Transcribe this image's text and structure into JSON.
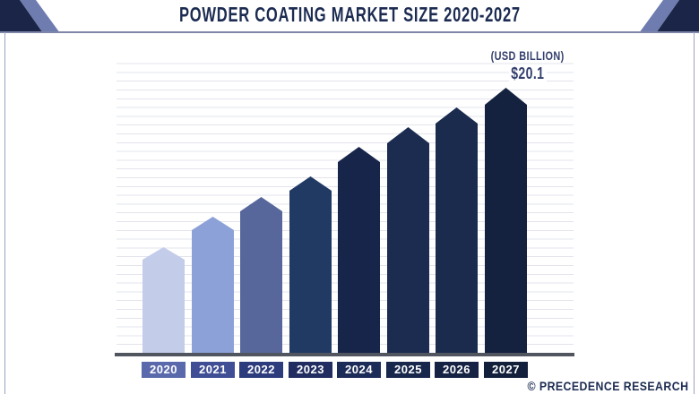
{
  "header": {
    "title": "POWDER COATING MARKET SIZE 2020-2027"
  },
  "annotation": {
    "unit_label": "(USD BILLION)",
    "value_label": "$20.1"
  },
  "footer": {
    "attribution": "© PRECEDENCE RESEARCH"
  },
  "colors": {
    "title": "#1c2b51",
    "corner_navy": "#1b2547",
    "corner_purple": "#6f7cb0",
    "header_line": "#7f86a8",
    "side_border": "#9ba1c0",
    "axis": "#515560",
    "gridline": "#e3e4ec",
    "annotation_text": "#333f6d",
    "year_text": "#ffffff"
  },
  "chart_data": {
    "type": "bar",
    "title": "POWDER COATING MARKET SIZE 2020-2027",
    "unit_label": "(USD BILLION)",
    "categories": [
      "2020",
      "2021",
      "2022",
      "2023",
      "2024",
      "2025",
      "2026",
      "2027"
    ],
    "values": [
      8.0,
      10.3,
      11.8,
      13.4,
      15.6,
      17.1,
      18.6,
      20.1
    ],
    "values_estimated_from_bar_heights": true,
    "labeled_values": {
      "2027": "$20.1"
    },
    "ylim": [
      0,
      20.1
    ],
    "grid": "horizontal-light",
    "legend": "none",
    "bar_shape": "pointed-top-pentagon",
    "bar_colors": [
      "#c3cce9",
      "#8ca1d7",
      "#57679b",
      "#203a64",
      "#17254b",
      "#1b2c50",
      "#1a2b4e",
      "#14213f"
    ],
    "label_box_colors": [
      "#5a69ab",
      "#3f4e95",
      "#2d3c7c",
      "#212c60",
      "#1c2c58",
      "#18284c",
      "#152243",
      "#12203c"
    ]
  }
}
